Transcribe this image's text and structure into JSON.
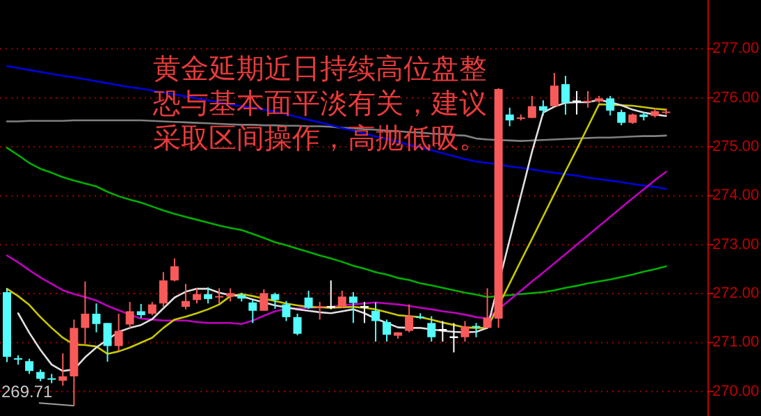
{
  "chart_data": {
    "type": "candlestick",
    "categories": [
      null,
      null,
      null,
      null,
      null,
      null,
      null,
      null,
      null,
      null,
      null,
      null,
      null,
      null,
      null,
      null,
      null,
      null,
      null,
      null,
      null,
      null,
      null,
      null,
      null,
      null,
      null,
      null,
      null,
      null,
      null,
      null,
      null,
      null,
      null,
      null,
      null,
      null,
      null,
      null,
      null,
      null,
      null,
      null,
      null,
      null,
      null,
      null,
      null,
      null,
      null,
      null,
      null,
      null,
      null,
      null,
      null,
      null,
      null,
      null
    ],
    "ohlc": [
      [
        272.03,
        272.1,
        270.6,
        270.71
      ],
      [
        270.68,
        270.74,
        270.55,
        270.66
      ],
      [
        270.62,
        270.67,
        270.36,
        270.42
      ],
      [
        270.4,
        270.45,
        270.21,
        270.26
      ],
      [
        270.27,
        270.36,
        270.17,
        270.25
      ],
      [
        270.22,
        270.78,
        270.12,
        270.31
      ],
      [
        270.31,
        271.47,
        269.71,
        271.3
      ],
      [
        271.3,
        272.25,
        270.97,
        271.59
      ],
      [
        271.59,
        271.8,
        271.21,
        271.38
      ],
      [
        271.4,
        271.4,
        270.61,
        270.93
      ],
      [
        270.93,
        271.59,
        270.83,
        271.24
      ],
      [
        271.37,
        271.83,
        271.3,
        271.64
      ],
      [
        271.64,
        271.79,
        271.5,
        271.56
      ],
      [
        271.59,
        271.83,
        271.56,
        271.78
      ],
      [
        271.8,
        272.44,
        271.73,
        272.27
      ],
      [
        272.27,
        272.72,
        272.25,
        272.56
      ],
      [
        271.73,
        272.2,
        271.68,
        271.85
      ],
      [
        271.87,
        272.11,
        271.8,
        271.99
      ],
      [
        271.99,
        272.13,
        271.8,
        271.89
      ],
      [
        271.93,
        272.11,
        271.8,
        271.95
      ],
      [
        271.94,
        272.11,
        271.84,
        272.01
      ],
      [
        271.97,
        272.02,
        271.84,
        271.9
      ],
      [
        271.82,
        271.87,
        271.4,
        271.65
      ],
      [
        271.65,
        272.09,
        271.65,
        272.01
      ],
      [
        271.99,
        272.02,
        271.69,
        271.87
      ],
      [
        271.78,
        271.85,
        271.44,
        271.52
      ],
      [
        271.52,
        271.59,
        271.15,
        271.18
      ],
      [
        271.92,
        272.06,
        271.69,
        271.71
      ],
      [
        271.72,
        271.83,
        271.47,
        271.74
      ],
      [
        271.73,
        272.27,
        271.68,
        271.73
      ],
      [
        271.73,
        272.06,
        271.7,
        271.94
      ],
      [
        271.94,
        272.03,
        271.4,
        271.81
      ],
      [
        271.73,
        271.83,
        271.4,
        271.73
      ],
      [
        271.65,
        271.82,
        271.02,
        271.44
      ],
      [
        271.42,
        271.47,
        271.02,
        271.16
      ],
      [
        271.14,
        271.21,
        271.08,
        271.21
      ],
      [
        271.24,
        271.78,
        271.21,
        271.54
      ],
      [
        271.53,
        271.6,
        271.48,
        271.51
      ],
      [
        271.4,
        271.54,
        271.02,
        271.11
      ],
      [
        271.26,
        271.44,
        271.02,
        271.26
      ],
      [
        271.11,
        271.4,
        270.8,
        271.11
      ],
      [
        271.11,
        271.44,
        271.02,
        271.33
      ],
      [
        271.34,
        271.4,
        271.11,
        271.32
      ],
      [
        271.3,
        272.11,
        271.3,
        271.51
      ],
      [
        271.49,
        276.2,
        271.3,
        276.18
      ],
      [
        275.66,
        275.8,
        275.42,
        275.54
      ],
      [
        275.58,
        275.66,
        275.54,
        275.6
      ],
      [
        275.59,
        276.04,
        275.59,
        275.83
      ],
      [
        275.83,
        275.95,
        275.64,
        275.74
      ],
      [
        275.83,
        276.51,
        275.83,
        276.25
      ],
      [
        276.28,
        276.45,
        275.66,
        275.9
      ],
      [
        275.93,
        276.14,
        275.66,
        275.93
      ],
      [
        275.92,
        276.14,
        275.8,
        275.94
      ],
      [
        275.93,
        276.04,
        275.9,
        275.99
      ],
      [
        275.99,
        276.04,
        275.64,
        275.74
      ],
      [
        275.71,
        275.76,
        275.44,
        275.49
      ],
      [
        275.49,
        275.68,
        275.47,
        275.66
      ],
      [
        275.66,
        275.71,
        275.54,
        275.61
      ],
      [
        275.63,
        275.78,
        275.6,
        275.73
      ],
      [
        275.7,
        275.78,
        275.66,
        275.72
      ]
    ],
    "colors": [
      "#54fcfc",
      "#54fcfc",
      "#54fcfc",
      "#54fcfc",
      "#54fcfc",
      "#f85a5a",
      "#f85a5a",
      "#f85a5a",
      "#54fcfc",
      "#54fcfc",
      "#f85a5a",
      "#f85a5a",
      "#54fcfc",
      "#f85a5a",
      "#f85a5a",
      "#f85a5a",
      "#f85a5a",
      "#f85a5a",
      "#54fcfc",
      "#f85a5a",
      "#f85a5a",
      "#54fcfc",
      "#54fcfc",
      "#f85a5a",
      "#54fcfc",
      "#54fcfc",
      "#54fcfc",
      "#54fcfc",
      "#f85a5a",
      "#ffffff",
      "#f85a5a",
      "#54fcfc",
      "#ffffff",
      "#54fcfc",
      "#54fcfc",
      "#f85a5a",
      "#f85a5a",
      "#54fcfc",
      "#54fcfc",
      "#ffffff",
      "#ffffff",
      "#f85a5a",
      "#54fcfc",
      "#f85a5a",
      "#f85a5a",
      "#54fcfc",
      "#f85a5a",
      "#f85a5a",
      "#54fcfc",
      "#f85a5a",
      "#54fcfc",
      "#ffffff",
      "#f85a5a",
      "#f85a5a",
      "#54fcfc",
      "#54fcfc",
      "#f85a5a",
      "#54fcfc",
      "#f85a5a",
      "#f85a5a"
    ],
    "series": [
      {
        "type": "line",
        "color": "#808080",
        "values": [
          275.52,
          275.52,
          275.53,
          275.53,
          275.53,
          275.53,
          275.54,
          275.54,
          275.54,
          275.54,
          275.54,
          275.54,
          275.54,
          275.53,
          275.52,
          275.51,
          275.5,
          275.49,
          275.48,
          275.47,
          275.46,
          275.45,
          275.45,
          275.44,
          275.44,
          275.43,
          275.43,
          275.42,
          275.42,
          275.41,
          275.39,
          275.38,
          275.36,
          275.35,
          275.33,
          275.32,
          275.3,
          275.29,
          275.27,
          275.26,
          275.24,
          275.23,
          275.17,
          275.15,
          275.14,
          275.13,
          275.12,
          275.13,
          275.14,
          275.15,
          275.16,
          275.17,
          275.18,
          275.19,
          275.19,
          275.2,
          275.21,
          275.22,
          275.22,
          275.23
        ]
      },
      {
        "type": "line",
        "color": "#0000e0",
        "values": [
          276.65,
          276.61,
          276.57,
          276.53,
          276.49,
          276.45,
          276.42,
          276.38,
          276.34,
          276.3,
          276.26,
          276.22,
          276.19,
          276.15,
          276.11,
          276.07,
          276.03,
          275.99,
          275.95,
          275.91,
          275.87,
          275.83,
          275.8,
          275.76,
          275.72,
          275.67,
          275.61,
          275.55,
          275.5,
          275.44,
          275.38,
          275.33,
          275.27,
          275.21,
          275.16,
          275.1,
          275.04,
          274.99,
          274.93,
          274.87,
          274.81,
          274.75,
          274.7,
          274.67,
          274.64,
          274.6,
          274.57,
          274.54,
          274.5,
          274.47,
          274.44,
          274.41,
          274.37,
          274.34,
          274.31,
          274.28,
          274.24,
          274.21,
          274.18,
          274.14
        ]
      },
      {
        "type": "line",
        "color": "#00b000",
        "values": [
          274.98,
          274.83,
          274.67,
          274.55,
          274.47,
          274.38,
          274.31,
          274.25,
          274.19,
          274.08,
          273.99,
          273.92,
          273.86,
          273.78,
          273.7,
          273.63,
          273.57,
          273.51,
          273.45,
          273.39,
          273.34,
          273.3,
          273.22,
          273.14,
          273.05,
          272.99,
          272.92,
          272.85,
          272.78,
          272.72,
          272.65,
          272.57,
          272.51,
          272.44,
          272.39,
          272.32,
          272.28,
          272.21,
          272.17,
          272.12,
          272.07,
          272.02,
          271.98,
          271.93,
          271.95,
          271.97,
          271.99,
          272.01,
          272.03,
          272.07,
          272.12,
          272.16,
          272.21,
          272.25,
          272.29,
          272.34,
          272.39,
          272.45,
          272.5,
          272.56
        ]
      },
      {
        "type": "line",
        "color": "#c000c0",
        "values": [
          272.78,
          272.64,
          272.48,
          272.33,
          272.2,
          272.07,
          271.99,
          271.93,
          271.86,
          271.75,
          271.66,
          271.57,
          271.49,
          271.47,
          271.45,
          271.45,
          271.45,
          271.42,
          271.4,
          271.4,
          271.4,
          271.38,
          271.45,
          271.55,
          271.64,
          271.69,
          271.7,
          271.71,
          271.72,
          271.73,
          271.76,
          271.78,
          271.8,
          271.82,
          271.8,
          271.78,
          271.75,
          271.71,
          271.68,
          271.64,
          271.61,
          271.57,
          271.52,
          271.49,
          271.68,
          271.87,
          272.06,
          272.25,
          272.43,
          272.62,
          272.81,
          273.0,
          273.19,
          273.38,
          273.57,
          273.76,
          273.95,
          274.13,
          274.32,
          274.49
        ]
      },
      {
        "type": "line",
        "color": "#c8c800",
        "values": [
          272.1,
          271.95,
          271.77,
          271.52,
          271.3,
          271.1,
          270.96,
          270.95,
          270.92,
          270.77,
          270.82,
          270.9,
          271.0,
          271.1,
          271.3,
          271.47,
          271.53,
          271.6,
          271.68,
          271.78,
          271.95,
          271.99,
          271.95,
          271.9,
          271.85,
          271.8,
          271.76,
          271.73,
          271.72,
          271.71,
          271.72,
          271.73,
          271.71,
          271.68,
          271.62,
          271.56,
          271.54,
          271.52,
          271.47,
          271.41,
          271.36,
          271.31,
          271.3,
          271.3,
          null,
          272.21,
          272.67,
          273.12,
          273.58,
          274.04,
          274.5,
          274.95,
          275.41,
          275.87,
          275.86,
          275.85,
          275.84,
          275.81,
          275.78,
          275.76
        ]
      },
      {
        "type": "line",
        "color": "#e0e0e0",
        "values": [
          null,
          271.6,
          271.2,
          270.85,
          270.55,
          270.42,
          270.45,
          270.7,
          270.9,
          271.06,
          271.22,
          271.3,
          271.36,
          271.48,
          271.7,
          271.92,
          272.04,
          272.1,
          272.1,
          272.02,
          271.97,
          271.95,
          271.88,
          271.82,
          271.76,
          271.72,
          271.68,
          271.65,
          271.62,
          271.6,
          271.64,
          271.68,
          271.6,
          271.49,
          271.4,
          271.31,
          271.3,
          271.3,
          271.27,
          271.24,
          271.22,
          271.21,
          271.22,
          271.3,
          null,
          273.1,
          274.0,
          274.9,
          275.7,
          275.82,
          275.9,
          275.91,
          275.91,
          275.96,
          275.91,
          275.85,
          275.76,
          275.7,
          275.66,
          275.63
        ]
      }
    ],
    "ylim": [
      269.5,
      278
    ],
    "yticks": [
      {
        "value": 270,
        "label": "270.00"
      },
      {
        "value": 271,
        "label": "271.00"
      },
      {
        "value": 272,
        "label": "272.00"
      },
      {
        "value": 273,
        "label": "273.00"
      },
      {
        "value": 274,
        "label": "274.00"
      },
      {
        "value": 275,
        "label": "275.00"
      },
      {
        "value": 276,
        "label": "276.00"
      },
      {
        "value": 277,
        "label": "277.00"
      }
    ],
    "grid": "y",
    "tick_labels": "y",
    "annotations": [
      "黄金延期近日持续高位盘整恐与基本面平淡有关，建议采取区间操作，高抛低吸。",
      "269.71"
    ]
  }
}
